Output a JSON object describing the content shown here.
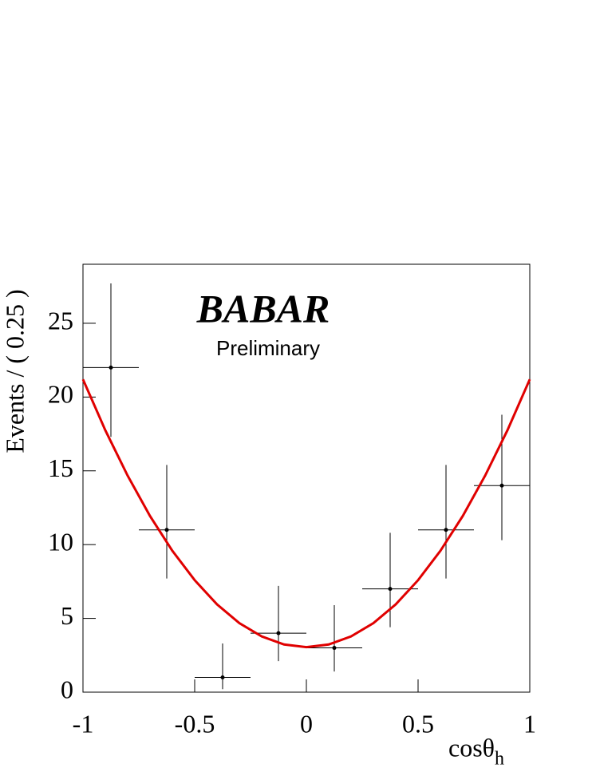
{
  "chart_data": {
    "type": "errorbar",
    "logo": "BABAR",
    "subtitle": "Preliminary",
    "xlabel": "cosθ",
    "xlabel_sub": "h",
    "ylabel": "Events / ( 0.25 )",
    "x": [
      -0.875,
      -0.625,
      -0.375,
      -0.125,
      0.125,
      0.375,
      0.625,
      0.875
    ],
    "values": [
      22,
      11,
      1,
      4,
      3,
      7,
      11,
      14
    ],
    "yerr_low": [
      4.7,
      3.3,
      0.8,
      1.9,
      1.6,
      2.6,
      3.3,
      3.7
    ],
    "yerr_high": [
      5.7,
      4.4,
      2.3,
      3.2,
      2.9,
      3.8,
      4.4,
      4.8
    ],
    "xerr": 0.125,
    "color": "#000000",
    "fit": {
      "color": "#e00000",
      "x": [
        -1,
        -0.9,
        -0.8,
        -0.7,
        -0.6,
        -0.5,
        -0.4,
        -0.3,
        -0.2,
        -0.1,
        0,
        0.1,
        0.2,
        0.3,
        0.4,
        0.5,
        0.6,
        0.7,
        0.8,
        0.9,
        1
      ],
      "values": [
        21.2,
        17.75,
        14.67,
        11.94,
        9.58,
        7.59,
        5.95,
        4.68,
        3.78,
        3.23,
        3.05,
        3.23,
        3.78,
        4.68,
        5.95,
        7.59,
        9.58,
        11.94,
        14.67,
        17.75,
        21.2
      ]
    },
    "xlim": [
      -1,
      1
    ],
    "xticks": [
      -1,
      -0.5,
      0,
      0.5,
      1
    ],
    "ylim": [
      0,
      29
    ],
    "yticks": [
      0,
      5,
      10,
      15,
      20,
      25
    ]
  }
}
